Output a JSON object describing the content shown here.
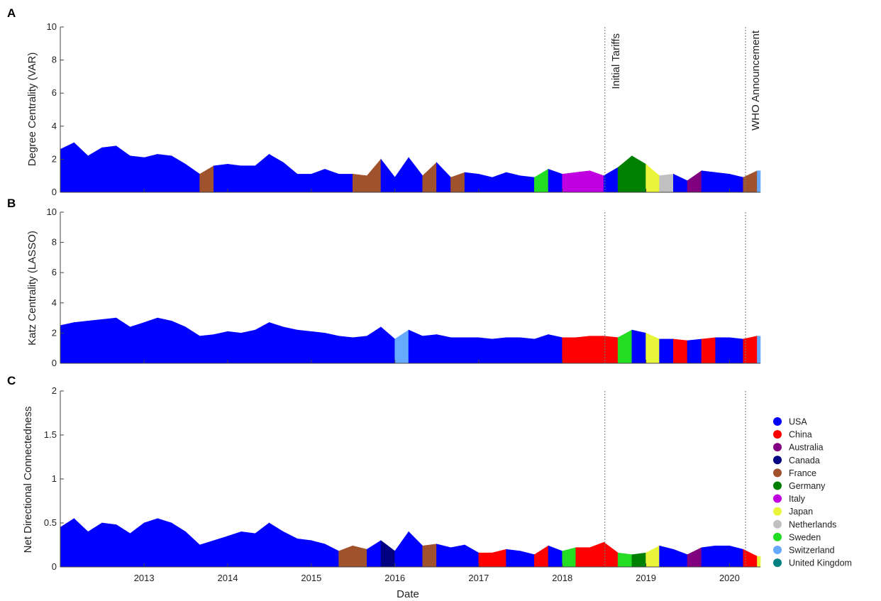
{
  "chart_data": [
    {
      "panel": "A",
      "type": "area",
      "ylabel": "Degree Centrality (VAR)",
      "ylim": [
        0,
        10
      ],
      "yticks": [
        0,
        2,
        4,
        6,
        8,
        10
      ],
      "x": [
        "2012-01",
        "2012-03",
        "2012-05",
        "2012-07",
        "2012-09",
        "2012-11",
        "2013-01",
        "2013-03",
        "2013-05",
        "2013-07",
        "2013-09",
        "2013-11",
        "2014-01",
        "2014-03",
        "2014-05",
        "2014-07",
        "2014-09",
        "2014-11",
        "2015-01",
        "2015-03",
        "2015-05",
        "2015-07",
        "2015-09",
        "2015-11",
        "2016-01",
        "2016-03",
        "2016-05",
        "2016-07",
        "2016-09",
        "2016-11",
        "2017-01",
        "2017-03",
        "2017-05",
        "2017-07",
        "2017-09",
        "2017-11",
        "2018-01",
        "2018-03",
        "2018-05",
        "2018-07",
        "2018-09",
        "2018-11",
        "2019-01",
        "2019-03",
        "2019-05",
        "2019-07",
        "2019-09",
        "2019-11",
        "2020-01",
        "2020-03",
        "2020-05"
      ],
      "values": [
        2.6,
        3.0,
        2.2,
        2.7,
        2.8,
        2.2,
        2.1,
        2.3,
        2.2,
        1.7,
        1.1,
        1.6,
        1.7,
        1.6,
        1.6,
        2.3,
        1.8,
        1.1,
        1.1,
        1.4,
        1.1,
        1.1,
        1.0,
        2.0,
        0.9,
        2.1,
        1.0,
        1.8,
        0.9,
        1.2,
        1.1,
        0.9,
        1.2,
        1.0,
        0.9,
        1.4,
        1.1,
        1.2,
        1.3,
        1.0,
        1.5,
        2.2,
        1.7,
        1.0,
        1.1,
        0.7,
        1.3,
        1.2,
        1.1,
        0.9,
        1.3
      ],
      "country_colors": [
        "USA",
        "USA",
        "USA",
        "USA",
        "USA",
        "USA",
        "USA",
        "USA",
        "USA",
        "USA",
        "France",
        "USA",
        "USA",
        "USA",
        "USA",
        "USA",
        "USA",
        "USA",
        "USA",
        "USA",
        "USA",
        "France",
        "France",
        "USA",
        "USA",
        "USA",
        "France",
        "USA",
        "France",
        "USA",
        "USA",
        "USA",
        "USA",
        "USA",
        "Sweden",
        "USA",
        "Italy",
        "Italy",
        "Italy",
        "USA",
        "Germany",
        "Germany",
        "Japan",
        "Netherlands",
        "USA",
        "Australia",
        "USA",
        "USA",
        "USA",
        "France",
        "Switzerland"
      ],
      "annotations": [
        "Initial Tariffs",
        "WHO Announcement"
      ]
    },
    {
      "panel": "B",
      "type": "area",
      "ylabel": "Katz Centrality (LASSO)",
      "ylim": [
        0,
        10
      ],
      "yticks": [
        0,
        2,
        4,
        6,
        8,
        10
      ],
      "x": [
        "2012-01",
        "2012-03",
        "2012-05",
        "2012-07",
        "2012-09",
        "2012-11",
        "2013-01",
        "2013-03",
        "2013-05",
        "2013-07",
        "2013-09",
        "2013-11",
        "2014-01",
        "2014-03",
        "2014-05",
        "2014-07",
        "2014-09",
        "2014-11",
        "2015-01",
        "2015-03",
        "2015-05",
        "2015-07",
        "2015-09",
        "2015-11",
        "2016-01",
        "2016-03",
        "2016-05",
        "2016-07",
        "2016-09",
        "2016-11",
        "2017-01",
        "2017-03",
        "2017-05",
        "2017-07",
        "2017-09",
        "2017-11",
        "2018-01",
        "2018-03",
        "2018-05",
        "2018-07",
        "2018-09",
        "2018-11",
        "2019-01",
        "2019-03",
        "2019-05",
        "2019-07",
        "2019-09",
        "2019-11",
        "2020-01",
        "2020-03",
        "2020-05"
      ],
      "values": [
        2.5,
        2.7,
        2.8,
        2.9,
        3.0,
        2.4,
        2.7,
        3.0,
        2.8,
        2.4,
        1.8,
        1.9,
        2.1,
        2.0,
        2.2,
        2.7,
        2.4,
        2.2,
        2.1,
        2.0,
        1.8,
        1.7,
        1.8,
        2.4,
        1.6,
        2.2,
        1.8,
        1.9,
        1.7,
        1.7,
        1.7,
        1.6,
        1.7,
        1.7,
        1.6,
        1.9,
        1.7,
        1.7,
        1.8,
        1.8,
        1.7,
        2.2,
        2.0,
        1.6,
        1.6,
        1.5,
        1.6,
        1.7,
        1.7,
        1.6,
        1.8
      ],
      "country_colors": [
        "USA",
        "USA",
        "USA",
        "USA",
        "USA",
        "USA",
        "USA",
        "USA",
        "USA",
        "USA",
        "USA",
        "USA",
        "USA",
        "USA",
        "USA",
        "USA",
        "USA",
        "USA",
        "USA",
        "USA",
        "USA",
        "USA",
        "USA",
        "USA",
        "Switzerland",
        "USA",
        "USA",
        "USA",
        "USA",
        "USA",
        "USA",
        "USA",
        "USA",
        "USA",
        "USA",
        "USA",
        "China",
        "China",
        "China",
        "China",
        "Sweden",
        "USA",
        "Japan",
        "USA",
        "China",
        "USA",
        "China",
        "USA",
        "USA",
        "China",
        "Switzerland"
      ],
      "annotations": []
    },
    {
      "panel": "C",
      "type": "area",
      "xlabel": "Date",
      "ylabel": "Net Directional Connectedness",
      "ylim": [
        0,
        2
      ],
      "yticks": [
        0,
        0.5,
        1,
        1.5,
        2
      ],
      "x": [
        "2012-01",
        "2012-03",
        "2012-05",
        "2012-07",
        "2012-09",
        "2012-11",
        "2013-01",
        "2013-03",
        "2013-05",
        "2013-07",
        "2013-09",
        "2013-11",
        "2014-01",
        "2014-03",
        "2014-05",
        "2014-07",
        "2014-09",
        "2014-11",
        "2015-01",
        "2015-03",
        "2015-05",
        "2015-07",
        "2015-09",
        "2015-11",
        "2016-01",
        "2016-03",
        "2016-05",
        "2016-07",
        "2016-09",
        "2016-11",
        "2017-01",
        "2017-03",
        "2017-05",
        "2017-07",
        "2017-09",
        "2017-11",
        "2018-01",
        "2018-03",
        "2018-05",
        "2018-07",
        "2018-09",
        "2018-11",
        "2019-01",
        "2019-03",
        "2019-05",
        "2019-07",
        "2019-09",
        "2019-11",
        "2020-01",
        "2020-03",
        "2020-05"
      ],
      "values": [
        0.45,
        0.55,
        0.4,
        0.5,
        0.48,
        0.38,
        0.5,
        0.55,
        0.5,
        0.4,
        0.25,
        0.3,
        0.35,
        0.4,
        0.38,
        0.5,
        0.4,
        0.32,
        0.3,
        0.26,
        0.18,
        0.24,
        0.2,
        0.3,
        0.18,
        0.4,
        0.24,
        0.26,
        0.22,
        0.25,
        0.16,
        0.16,
        0.2,
        0.18,
        0.14,
        0.24,
        0.18,
        0.22,
        0.22,
        0.28,
        0.16,
        0.14,
        0.16,
        0.24,
        0.2,
        0.14,
        0.22,
        0.24,
        0.24,
        0.2,
        0.12
      ],
      "country_colors": [
        "USA",
        "USA",
        "USA",
        "USA",
        "USA",
        "USA",
        "USA",
        "USA",
        "USA",
        "USA",
        "USA",
        "USA",
        "USA",
        "USA",
        "USA",
        "USA",
        "USA",
        "USA",
        "USA",
        "USA",
        "France",
        "France",
        "USA",
        "Canada",
        "USA",
        "USA",
        "France",
        "USA",
        "USA",
        "USA",
        "China",
        "China",
        "USA",
        "USA",
        "China",
        "USA",
        "Sweden",
        "China",
        "China",
        "China",
        "Sweden",
        "Germany",
        "Japan",
        "USA",
        "USA",
        "Australia",
        "USA",
        "USA",
        "USA",
        "China",
        "Japan"
      ],
      "annotations": []
    }
  ],
  "shared": {
    "panel_letters": [
      "A",
      "B",
      "C"
    ],
    "x_tick_labels": [
      "2013",
      "2014",
      "2015",
      "2016",
      "2017",
      "2018",
      "2019",
      "2020"
    ],
    "xlabel": "Date",
    "events": [
      {
        "label": "Initial Tariffs",
        "date": "2018-07-06"
      },
      {
        "label": "WHO Announcement",
        "date": "2020-03-11"
      }
    ]
  },
  "legend": {
    "placement": "right",
    "entries": [
      {
        "label": "USA",
        "color": "#0000ff"
      },
      {
        "label": "China",
        "color": "#ff0000"
      },
      {
        "label": "Australia",
        "color": "#800080"
      },
      {
        "label": "Canada",
        "color": "#000080"
      },
      {
        "label": "France",
        "color": "#a0522d"
      },
      {
        "label": "Germany",
        "color": "#008000"
      },
      {
        "label": "Italy",
        "color": "#c000e0"
      },
      {
        "label": "Japan",
        "color": "#e8f53a"
      },
      {
        "label": "Netherlands",
        "color": "#c0c0c0"
      },
      {
        "label": "Sweden",
        "color": "#22dd22"
      },
      {
        "label": "Switzerland",
        "color": "#66aaff"
      },
      {
        "label": "United Kingdom",
        "color": "#008080"
      }
    ]
  }
}
